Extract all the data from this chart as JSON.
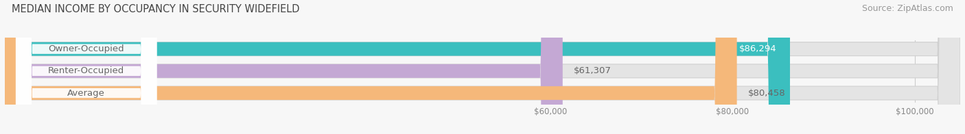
{
  "title": "MEDIAN INCOME BY OCCUPANCY IN SECURITY WIDEFIELD",
  "source": "Source: ZipAtlas.com",
  "categories": [
    "Owner-Occupied",
    "Renter-Occupied",
    "Average"
  ],
  "values": [
    86294,
    61307,
    80458
  ],
  "bar_colors": [
    "#3bbfbf",
    "#c4a8d4",
    "#f5b87a"
  ],
  "bar_bg_color": "#e8e8e8",
  "label_color": "#666666",
  "value_label_color_inside": "#ffffff",
  "value_label_color_outside": "#666666",
  "value_labels": [
    "$86,294",
    "$61,307",
    "$80,458"
  ],
  "value_inside": [
    true,
    false,
    false
  ],
  "xmin": 0,
  "xmax": 105000,
  "xlim_left": 0,
  "xticks": [
    60000,
    80000,
    100000
  ],
  "xtick_labels": [
    "$60,000",
    "$80,000",
    "$100,000"
  ],
  "title_fontsize": 10.5,
  "source_fontsize": 9,
  "bar_label_fontsize": 9.5,
  "value_label_fontsize": 9.5,
  "background_color": "#f7f7f7",
  "bar_height": 0.62,
  "bar_bg_color_fill": "#e4e4e4",
  "bar_bg_edge_color": "#d0d0d0"
}
